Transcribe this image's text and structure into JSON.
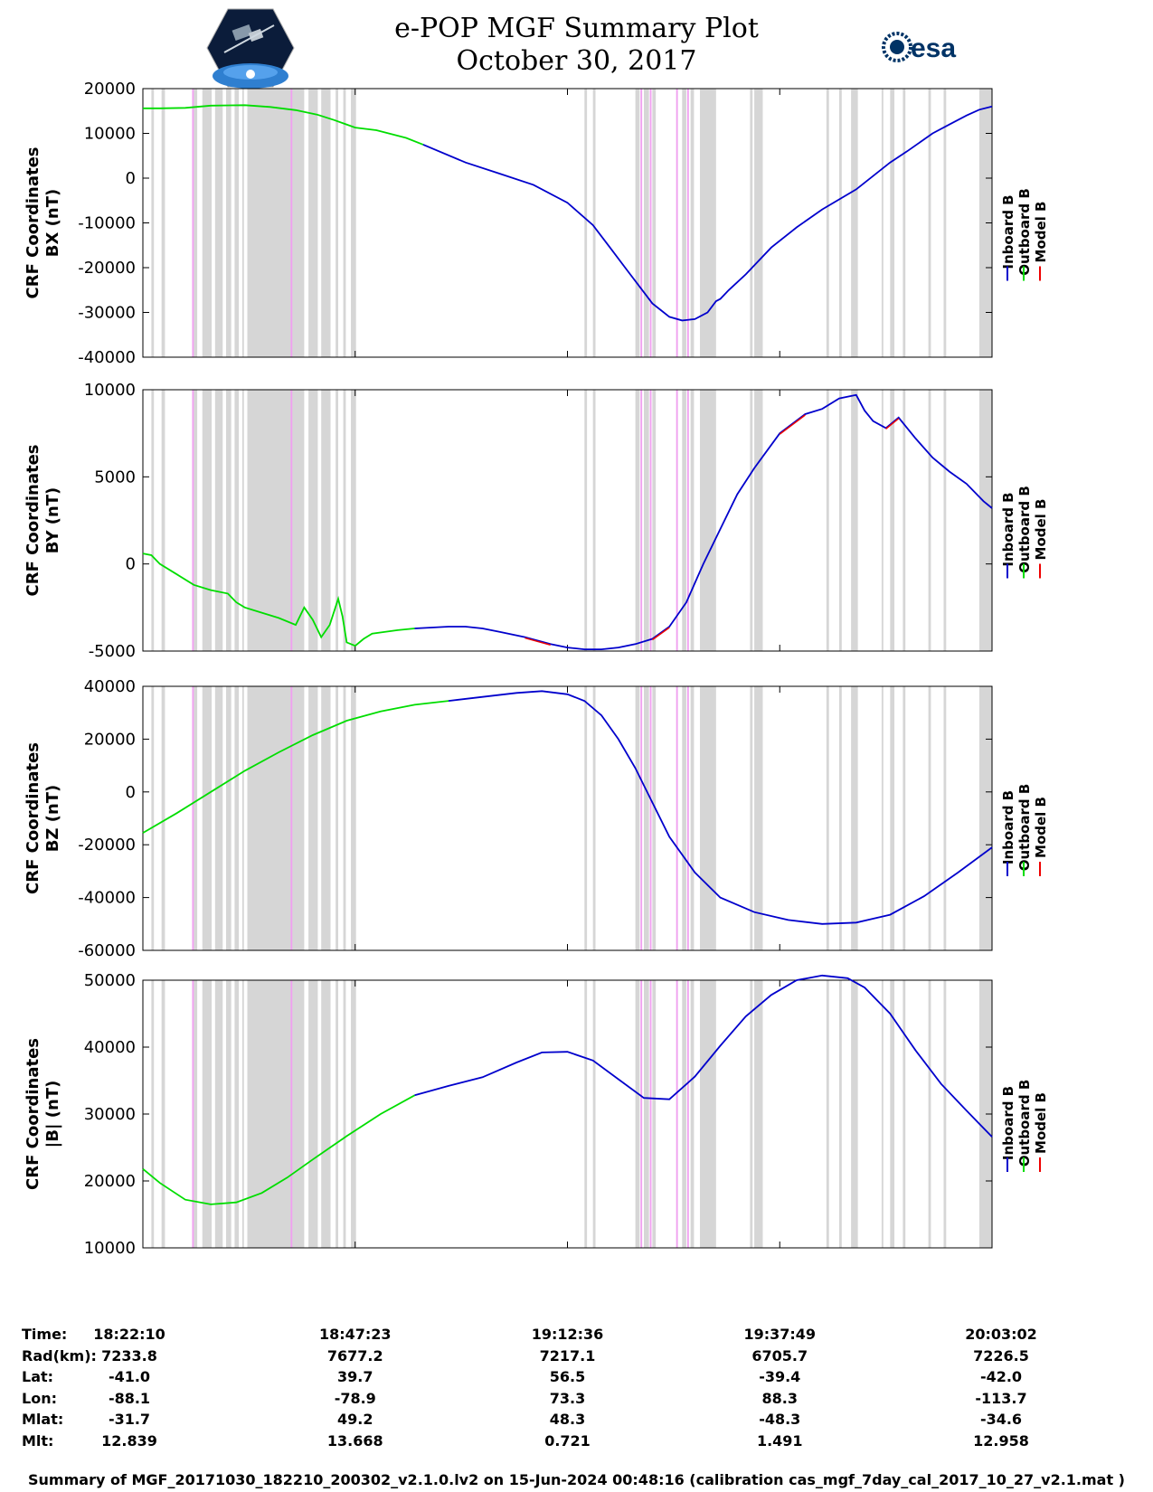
{
  "header": {
    "title_line1": "e-POP MGF Summary Plot",
    "title_line2": "October 30, 2017",
    "logo_left": "cassiope-satellite-logo",
    "logo_right_text": "esa"
  },
  "legend": [
    "Inboard B",
    "Outboard B",
    "Model B"
  ],
  "colors": {
    "inboard": "#0000cc",
    "outboard": "#00dd00",
    "model": "#ee0000",
    "gap_gray": "#d6d6d6",
    "gap_pink": "#f0a0f0"
  },
  "chart_data": [
    {
      "type": "line",
      "ylabel_line1": "CRF Coordinates",
      "ylabel_line2": "BX (nT)",
      "ylim": [
        -40000,
        20000
      ],
      "yticks": [
        20000,
        10000,
        0,
        -10000,
        -20000,
        -30000,
        -40000
      ],
      "x_ticks": [
        "18:22:10",
        "18:47:23",
        "19:12:36",
        "19:37:49",
        "20:03:02"
      ],
      "series": [
        {
          "name": "Outboard B",
          "x": [
            0,
            2,
            5,
            8,
            12,
            15,
            18,
            20.5,
            22.5,
            25,
            27.5,
            31,
            33
          ],
          "y": [
            15600,
            15600,
            15700,
            16200,
            16300,
            15900,
            15200,
            14200,
            13000,
            11300,
            10700,
            9000,
            7500
          ]
        },
        {
          "name": "Inboard B",
          "x": [
            33,
            38,
            42,
            46,
            50,
            53,
            55,
            57,
            59,
            60,
            61,
            62,
            63.5,
            65,
            66.5,
            67.5,
            68,
            69,
            71,
            74,
            77,
            80,
            84,
            88,
            90,
            93,
            95,
            97,
            98.5,
            100
          ],
          "y": [
            7500,
            3500,
            1000,
            -1500,
            -5500,
            -10500,
            -15500,
            -20500,
            -25500,
            -28000,
            -29500,
            -31000,
            -31800,
            -31500,
            -30000,
            -27500,
            -27000,
            -25000,
            -21500,
            -15500,
            -11000,
            -7000,
            -2500,
            3500,
            6000,
            10000,
            12000,
            14000,
            15300,
            16000
          ]
        }
      ]
    },
    {
      "type": "line",
      "ylabel_line1": "CRF Coordinates",
      "ylabel_line2": "BY (nT)",
      "ylim": [
        -5000,
        10000
      ],
      "yticks": [
        10000,
        5000,
        0,
        -5000
      ],
      "x_ticks": [
        "18:22:10",
        "18:47:23",
        "19:12:36",
        "19:37:49",
        "20:03:02"
      ],
      "series": [
        {
          "name": "Outboard B",
          "x": [
            0,
            1,
            2,
            4,
            6,
            8,
            10,
            11,
            12,
            14,
            16,
            18,
            19,
            20,
            21,
            22,
            23,
            23.5,
            24,
            25,
            26,
            27,
            30,
            32
          ],
          "y": [
            600,
            500,
            0,
            -600,
            -1200,
            -1500,
            -1700,
            -2200,
            -2500,
            -2800,
            -3100,
            -3500,
            -2500,
            -3200,
            -4200,
            -3500,
            -2000,
            -3000,
            -4500,
            -4700,
            -4300,
            -4000,
            -3800,
            -3700
          ]
        },
        {
          "name": "Inboard B",
          "x": [
            32,
            34,
            36,
            38,
            40,
            42,
            45,
            48,
            50,
            52,
            54,
            56,
            58,
            60,
            62,
            64,
            66,
            68,
            70,
            72,
            75,
            78,
            80,
            82,
            84,
            85,
            86,
            87.5,
            89,
            91,
            93,
            95,
            97,
            99,
            100
          ],
          "y": [
            -3700,
            -3650,
            -3600,
            -3600,
            -3700,
            -3900,
            -4200,
            -4600,
            -4800,
            -4900,
            -4900,
            -4800,
            -4600,
            -4300,
            -3600,
            -2200,
            0,
            2000,
            4000,
            5500,
            7500,
            8600,
            8900,
            9500,
            9700,
            8800,
            8200,
            7800,
            8400,
            7200,
            6100,
            5300,
            4600,
            3600,
            3200
          ]
        },
        {
          "name": "Model B",
          "x": [
            45,
            48,
            60,
            62,
            75,
            78,
            87.5,
            89
          ],
          "y": [
            -4250,
            -4650,
            -4350,
            -3650,
            7450,
            8550,
            7750,
            8350
          ]
        }
      ]
    },
    {
      "type": "line",
      "ylabel_line1": "CRF Coordinates",
      "ylabel_line2": "BZ (nT)",
      "ylim": [
        -60000,
        40000
      ],
      "yticks": [
        40000,
        20000,
        0,
        -20000,
        -40000,
        -60000
      ],
      "x_ticks": [
        "18:22:10",
        "18:47:23",
        "19:12:36",
        "19:37:49",
        "20:03:02"
      ],
      "series": [
        {
          "name": "Outboard B",
          "x": [
            0,
            4,
            8,
            12,
            16,
            20,
            24,
            28,
            32,
            36
          ],
          "y": [
            -15500,
            -8000,
            0,
            8000,
            15000,
            21500,
            27000,
            30500,
            33000,
            34500
          ]
        },
        {
          "name": "Inboard B",
          "x": [
            36,
            40,
            44,
            47,
            50,
            52,
            54,
            56,
            58,
            60,
            62,
            65,
            68,
            72,
            76,
            80,
            84,
            88,
            92,
            96,
            100
          ],
          "y": [
            34500,
            36000,
            37500,
            38200,
            37000,
            34500,
            29000,
            20000,
            9000,
            -4000,
            -17000,
            -30500,
            -40000,
            -45500,
            -48500,
            -50000,
            -49500,
            -46500,
            -39500,
            -30500,
            -21000
          ]
        }
      ]
    },
    {
      "type": "line",
      "ylabel_line1": "CRF Coordinates",
      "ylabel_line2": "|B| (nT)",
      "ylim": [
        10000,
        50000
      ],
      "yticks": [
        50000,
        40000,
        30000,
        20000,
        10000
      ],
      "x_ticks": [
        "18:22:10",
        "18:47:23",
        "19:12:36",
        "19:37:49",
        "20:03:02"
      ],
      "series": [
        {
          "name": "Outboard B",
          "x": [
            0,
            2,
            5,
            8,
            11,
            14,
            17,
            20,
            24,
            28,
            32
          ],
          "y": [
            21800,
            19700,
            17200,
            16500,
            16800,
            18200,
            20500,
            23200,
            26700,
            30000,
            32800
          ]
        },
        {
          "name": "Inboard B",
          "x": [
            32,
            36,
            40,
            44,
            47,
            50,
            53,
            56,
            59,
            62,
            65,
            68,
            71,
            74,
            77,
            80,
            83,
            85,
            88,
            91,
            94,
            97,
            100
          ],
          "y": [
            32800,
            34200,
            35500,
            37700,
            39200,
            39300,
            38000,
            35200,
            32400,
            32200,
            35600,
            40200,
            44600,
            47800,
            50000,
            50700,
            50300,
            48900,
            45000,
            39500,
            34500,
            30500,
            26600
          ]
        }
      ]
    }
  ],
  "info_table": {
    "labels": [
      "Time:",
      "Rad(km):",
      "Lat:",
      "Lon:",
      "Mlat:",
      "Mlt:"
    ],
    "columns": [
      [
        "18:22:10",
        "7233.8",
        "-41.0",
        "-88.1",
        "-31.7",
        "12.839"
      ],
      [
        "18:47:23",
        "7677.2",
        "39.7",
        "-78.9",
        "49.2",
        "13.668"
      ],
      [
        "19:12:36",
        "7217.1",
        "56.5",
        "73.3",
        "48.3",
        "0.721"
      ],
      [
        "19:37:49",
        "6705.7",
        "-39.4",
        "88.3",
        "-48.3",
        "1.491"
      ],
      [
        "20:03:02",
        "7226.5",
        "-42.0",
        "-113.7",
        "-34.6",
        "12.958"
      ]
    ]
  },
  "footer": "Summary of MGF_20171030_182210_200302_v2.1.0.lv2 on 15-Jun-2024 00:48:16 (calibration cas_mgf_7day_cal_2017_10_27_v2.1.mat )"
}
